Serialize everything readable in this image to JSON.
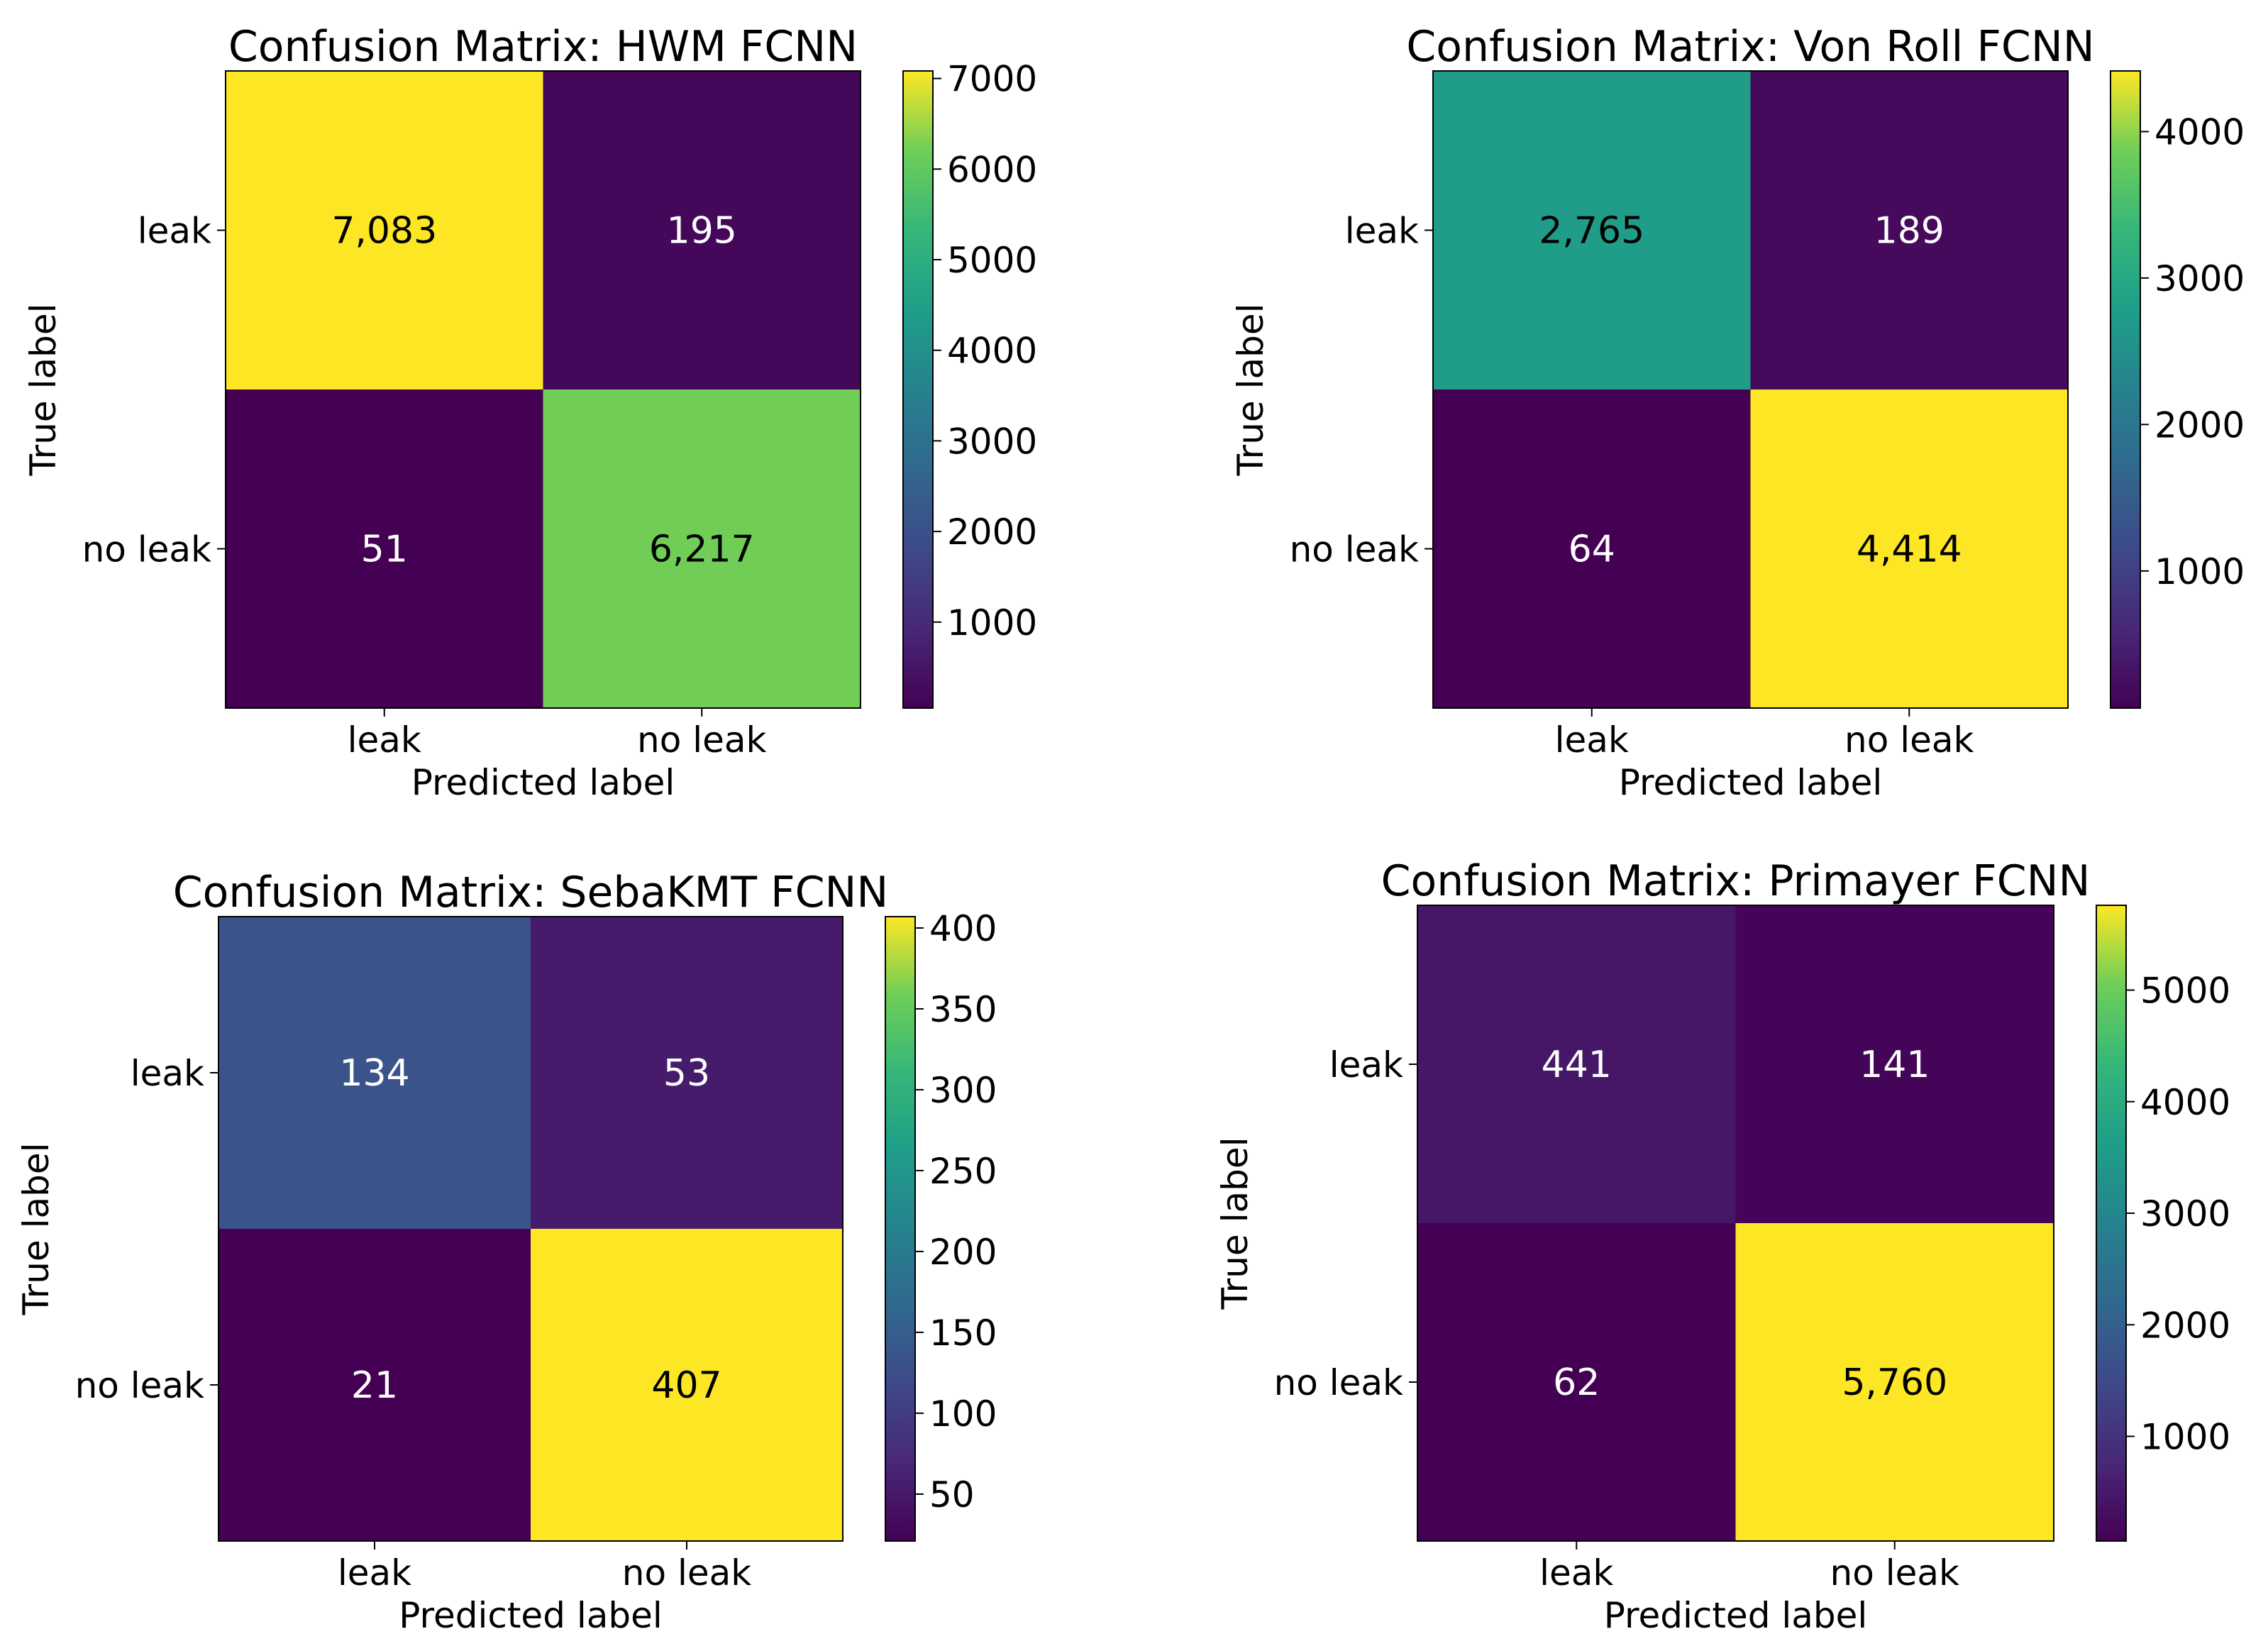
{
  "colors": {
    "colormap": "viridis",
    "text_on_dark": "#ffffff",
    "text_on_light": "#000000",
    "axes": "#000000",
    "background": "#ffffff"
  },
  "chart_data": [
    {
      "type": "heatmap",
      "title": "Confusion Matrix: HWM FCNN",
      "xlabel": "Predicted label",
      "ylabel": "True label",
      "x_categories": [
        "leak",
        "no leak"
      ],
      "y_categories": [
        "leak",
        "no leak"
      ],
      "values": [
        [
          7083,
          195
        ],
        [
          51,
          6217
        ]
      ],
      "value_labels": [
        [
          "7,083",
          "195"
        ],
        [
          "51",
          "6,217"
        ]
      ],
      "colorbar": {
        "range": [
          51,
          7083
        ],
        "ticks": [
          1000,
          2000,
          3000,
          4000,
          5000,
          6000,
          7000
        ]
      }
    },
    {
      "type": "heatmap",
      "title": "Confusion Matrix: Von Roll FCNN",
      "xlabel": "Predicted label",
      "ylabel": "True label",
      "x_categories": [
        "leak",
        "no leak"
      ],
      "y_categories": [
        "leak",
        "no leak"
      ],
      "values": [
        [
          2765,
          189
        ],
        [
          64,
          4414
        ]
      ],
      "value_labels": [
        [
          "2,765",
          "189"
        ],
        [
          "64",
          "4,414"
        ]
      ],
      "colorbar": {
        "range": [
          64,
          4414
        ],
        "ticks": [
          1000,
          2000,
          3000,
          4000
        ]
      }
    },
    {
      "type": "heatmap",
      "title": "Confusion Matrix: SebaKMT FCNN",
      "xlabel": "Predicted label",
      "ylabel": "True label",
      "x_categories": [
        "leak",
        "no leak"
      ],
      "y_categories": [
        "leak",
        "no leak"
      ],
      "values": [
        [
          134,
          53
        ],
        [
          21,
          407
        ]
      ],
      "value_labels": [
        [
          "134",
          "53"
        ],
        [
          "21",
          "407"
        ]
      ],
      "colorbar": {
        "range": [
          21,
          407
        ],
        "ticks": [
          50,
          100,
          150,
          200,
          250,
          300,
          350,
          400
        ]
      }
    },
    {
      "type": "heatmap",
      "title": "Confusion Matrix: Primayer FCNN",
      "xlabel": "Predicted label",
      "ylabel": "True label",
      "x_categories": [
        "leak",
        "no leak"
      ],
      "y_categories": [
        "leak",
        "no leak"
      ],
      "values": [
        [
          441,
          141
        ],
        [
          62,
          5760
        ]
      ],
      "value_labels": [
        [
          "441",
          "141"
        ],
        [
          "62",
          "5,760"
        ]
      ],
      "colorbar": {
        "range": [
          62,
          5760
        ],
        "ticks": [
          1000,
          2000,
          3000,
          4000,
          5000
        ]
      }
    }
  ]
}
